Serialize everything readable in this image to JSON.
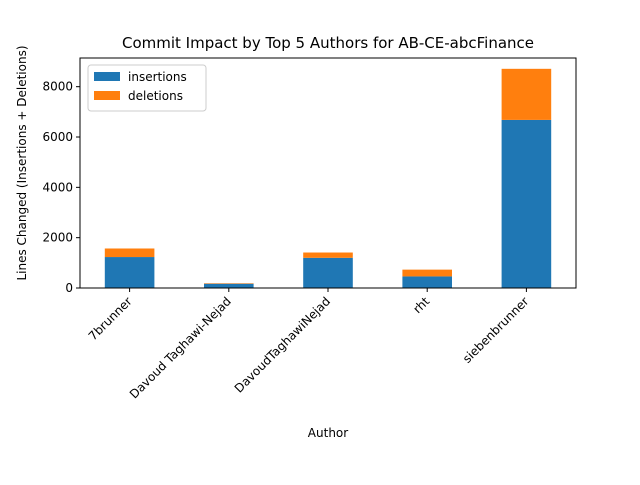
{
  "chart_data": {
    "type": "bar",
    "stacked": true,
    "title": "Commit Impact by Top 5 Authors for AB-CE-abcFinance",
    "xlabel": "Author",
    "ylabel": "Lines Changed (Insertions + Deletions)",
    "categories": [
      "7brunner",
      "Davoud Taghawi-Nejad",
      "DavoudTaghawiNejad",
      "rht",
      "siebenbrunner"
    ],
    "series": [
      {
        "name": "insertions",
        "color": "#1f77b4",
        "values": [
          1230,
          170,
          1200,
          460,
          6680
        ]
      },
      {
        "name": "deletions",
        "color": "#ff7f0e",
        "values": [
          340,
          20,
          210,
          270,
          2030
        ]
      }
    ],
    "ylim": [
      0,
      9140
    ],
    "yticks": [
      0,
      2000,
      4000,
      6000,
      8000
    ],
    "grid": false,
    "legend_position": "top-left"
  }
}
